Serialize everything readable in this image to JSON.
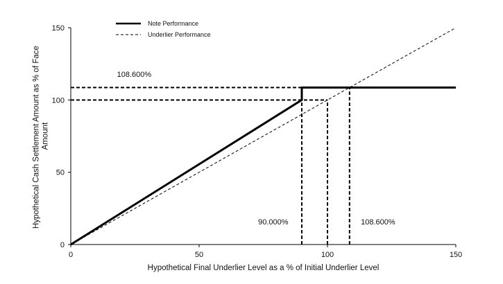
{
  "chart_data": {
    "type": "line",
    "xlabel": "Hypothetical Final Underlier Level as a % of Initial Underlier Level",
    "ylabel_lines": [
      "Hypothetical Cash Settlement Amount as % of Face",
      "Amount"
    ],
    "xlim": [
      0,
      150
    ],
    "ylim": [
      0,
      150
    ],
    "x_ticks": [
      0,
      50,
      100,
      150
    ],
    "y_ticks": [
      0,
      50,
      100,
      150
    ],
    "x_tick_labels": [
      "0",
      "50",
      "100",
      "150"
    ],
    "y_tick_labels": [
      "0",
      "50",
      "100",
      "150"
    ],
    "grid": false,
    "legend": "top-left",
    "series": [
      {
        "name": "Note Performance",
        "style": "solid",
        "color": "#000000",
        "points": [
          [
            0,
            0
          ],
          [
            90,
            100
          ],
          [
            90,
            108.6
          ],
          [
            150,
            108.6
          ]
        ]
      },
      {
        "name": "Underlier Performance",
        "style": "dashed",
        "color": "#000000",
        "points": [
          [
            0,
            0
          ],
          [
            150,
            150
          ]
        ]
      }
    ],
    "reference_lines": [
      {
        "style": "dashed",
        "points": [
          [
            0,
            108.6
          ],
          [
            90,
            108.6
          ]
        ]
      },
      {
        "style": "dashed",
        "points": [
          [
            0,
            100
          ],
          [
            100,
            100
          ]
        ]
      },
      {
        "style": "dashed",
        "points": [
          [
            90,
            0
          ],
          [
            90,
            100
          ]
        ]
      },
      {
        "style": "dashed",
        "points": [
          [
            100,
            0
          ],
          [
            100,
            100
          ]
        ]
      },
      {
        "style": "dashed",
        "points": [
          [
            108.6,
            0
          ],
          [
            108.6,
            108.6
          ]
        ]
      }
    ],
    "annotations": [
      {
        "text": "108.600%",
        "x": 18,
        "y": 116
      },
      {
        "text": "90.000%",
        "x": 73,
        "y": 14
      },
      {
        "text": "108.600%",
        "x": 113,
        "y": 14
      }
    ]
  }
}
